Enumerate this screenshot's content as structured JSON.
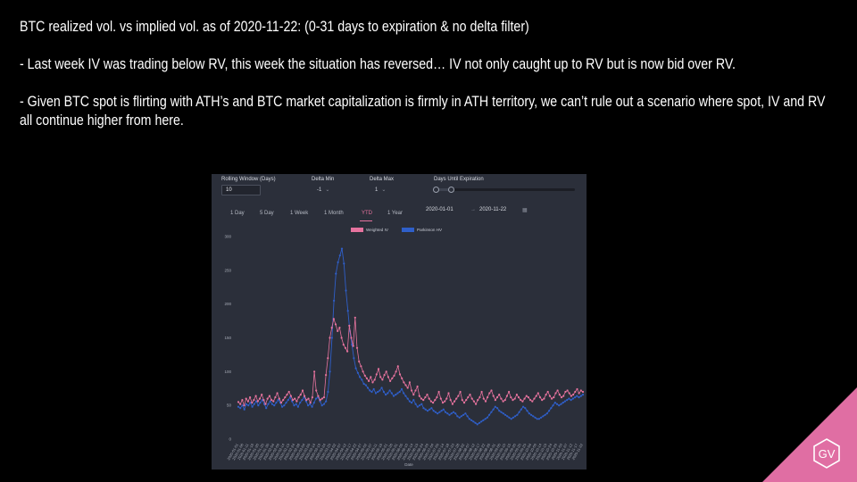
{
  "slide": {
    "heading": "BTC realized vol. vs implied vol. as of 2020-11-22: (0-31 days to expiration & no delta filter)",
    "bullet1": "- Last week IV was trading below RV, this week the situation has reversed… IV not only caught up to RV but is now bid over RV.",
    "bullet2": "- Given BTC spot is flirting with ATH’s and BTC market capitalization is firmly in ATH territory, we can’t rule out a scenario where spot, IV and RV all continue higher from here.",
    "logo_text": "GV"
  },
  "controls": {
    "rolling_window_label": "Rolling Window (Days)",
    "rolling_window_value": "10",
    "delta_min_label": "Delta Min",
    "delta_min_value": "-1",
    "delta_max_label": "Delta Max",
    "delta_max_value": "1",
    "days_until_expiration_label": "Days Until Expiration",
    "days_until_expiration_range": [
      0,
      31
    ],
    "ranges": [
      "1 Day",
      "5 Day",
      "1 Week",
      "1 Month",
      "YTD",
      "1 Year"
    ],
    "active_range": "YTD",
    "start_date": "2020-01-01",
    "date_separator": "→",
    "end_date": "2020-11-22"
  },
  "colors": {
    "background": "#000000",
    "dashboard": "#2b2f3a",
    "weighted_iv": "#e6739e",
    "parkinson_hv": "#2f5fc9",
    "gv_triangle": "#e06ea3"
  },
  "chart_data": {
    "type": "line",
    "x_start": "2020-01-01",
    "x_end": "2020-11-22",
    "xlabel": "Date",
    "ylabel": "",
    "ylim": [
      0,
      300
    ],
    "yticks": [
      0,
      50,
      100,
      150,
      200,
      250,
      300
    ],
    "grid": false,
    "legend": "top-center",
    "series": [
      {
        "name": "Weighted IV",
        "color": "#e6739e",
        "values": [
          55,
          52,
          58,
          50,
          60,
          56,
          62,
          54,
          58,
          64,
          56,
          60,
          66,
          58,
          52,
          60,
          64,
          58,
          56,
          62,
          68,
          60,
          54,
          58,
          62,
          66,
          70,
          64,
          58,
          60,
          56,
          62,
          66,
          72,
          64,
          58,
          60,
          54,
          62,
          100,
          72,
          64,
          58,
          60,
          62,
          95,
          120,
          150,
          165,
          178,
          170,
          160,
          165,
          150,
          140,
          135,
          130,
          168,
          150,
          138,
          180,
          135,
          115,
          108,
          100,
          94,
          90,
          86,
          92,
          84,
          88,
          96,
          104,
          92,
          88,
          95,
          100,
          92,
          86,
          90,
          94,
          100,
          108,
          96,
          90,
          84,
          80,
          76,
          84,
          72,
          66,
          72,
          78,
          64,
          60,
          58,
          62,
          66,
          60,
          56,
          54,
          58,
          62,
          70,
          60,
          54,
          56,
          60,
          68,
          58,
          52,
          56,
          60,
          64,
          70,
          58,
          54,
          58,
          62,
          66,
          60,
          56,
          52,
          58,
          62,
          70,
          60,
          56,
          62,
          68,
          72,
          64,
          58,
          62,
          66,
          60,
          56,
          58,
          64,
          70,
          62,
          58,
          60,
          66,
          62,
          58,
          56,
          60,
          64,
          62,
          58,
          56,
          60,
          64,
          68,
          62,
          58,
          60,
          66,
          70,
          64,
          60,
          62,
          68,
          72,
          66,
          62,
          64,
          70,
          72,
          68,
          64,
          66,
          70,
          74,
          68,
          72,
          70
        ]
      },
      {
        "name": "Parkinson HV",
        "color": "#2f5fc9",
        "values": [
          48,
          46,
          50,
          44,
          52,
          50,
          54,
          48,
          52,
          56,
          50,
          54,
          58,
          52,
          46,
          52,
          56,
          52,
          50,
          54,
          58,
          54,
          48,
          50,
          54,
          58,
          62,
          56,
          50,
          52,
          48,
          54,
          58,
          62,
          56,
          50,
          52,
          48,
          54,
          60,
          62,
          56,
          50,
          52,
          56,
          70,
          100,
          150,
          205,
          245,
          262,
          272,
          282,
          260,
          220,
          190,
          160,
          140,
          120,
          105,
          98,
          92,
          88,
          82,
          80,
          76,
          72,
          70,
          74,
          68,
          70,
          72,
          76,
          70,
          66,
          68,
          72,
          68,
          64,
          66,
          68,
          70,
          74,
          68,
          64,
          60,
          56,
          54,
          58,
          52,
          48,
          50,
          52,
          46,
          44,
          42,
          44,
          46,
          42,
          40,
          38,
          40,
          42,
          44,
          40,
          38,
          36,
          38,
          40,
          38,
          34,
          32,
          34,
          36,
          38,
          34,
          30,
          28,
          26,
          24,
          22,
          24,
          26,
          28,
          30,
          32,
          36,
          40,
          44,
          48,
          46,
          42,
          40,
          38,
          36,
          34,
          32,
          30,
          32,
          34,
          36,
          40,
          44,
          48,
          46,
          42,
          38,
          36,
          34,
          32,
          30,
          30,
          32,
          34,
          36,
          38,
          42,
          46,
          50,
          54,
          52,
          50,
          52,
          54,
          56,
          58,
          60,
          58,
          60,
          62,
          64,
          62,
          64,
          66
        ]
      }
    ]
  }
}
